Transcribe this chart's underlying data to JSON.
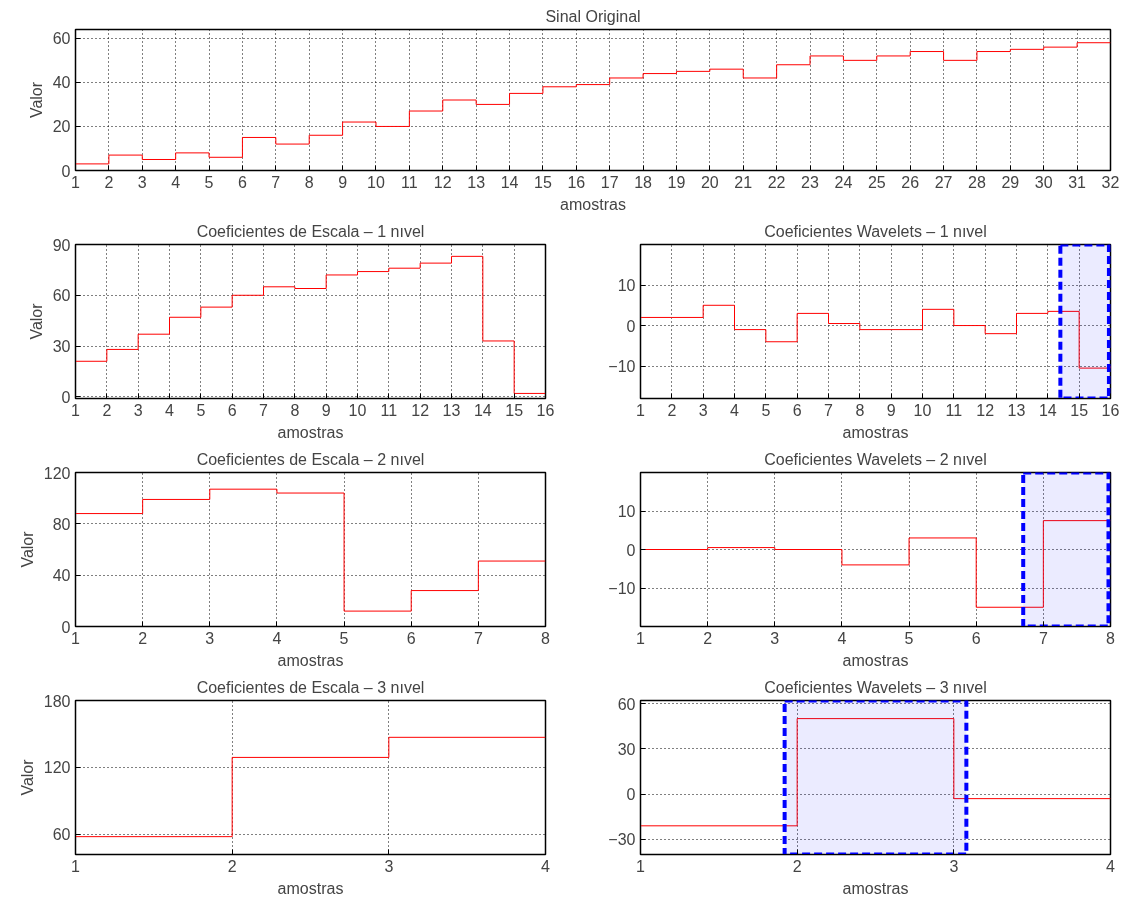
{
  "chart_data": [
    {
      "type": "step",
      "title": "Sinal Original",
      "xlabel": "amostras",
      "ylabel": "Valor",
      "color": "#ff0000",
      "grid": true,
      "x": [
        1,
        2,
        3,
        4,
        5,
        6,
        7,
        8,
        9,
        10,
        11,
        12,
        13,
        14,
        15,
        16,
        17,
        18,
        19,
        20,
        21,
        22,
        23,
        24,
        25,
        26,
        27,
        28,
        29,
        30,
        31,
        32
      ],
      "values": [
        3,
        7,
        5,
        8,
        6,
        15,
        12,
        16,
        22,
        20,
        27,
        32,
        30,
        35,
        38,
        39,
        42,
        44,
        45,
        46,
        42,
        48,
        52,
        50,
        52,
        54,
        50,
        54,
        55,
        56,
        58,
        58
      ],
      "xlim": [
        1,
        32
      ],
      "xticks": [
        1,
        2,
        3,
        4,
        5,
        6,
        7,
        8,
        9,
        10,
        11,
        12,
        13,
        14,
        15,
        16,
        17,
        18,
        19,
        20,
        21,
        22,
        23,
        24,
        25,
        26,
        27,
        28,
        29,
        30,
        31,
        32
      ],
      "ylim": [
        0,
        64
      ],
      "yticks": [
        0,
        20,
        40,
        60
      ]
    },
    {
      "type": "step",
      "title": "Coeficientes de Escala – 1 nıvel",
      "xlabel": "amostras",
      "ylabel": "Valor",
      "color": "#ff0000",
      "grid": true,
      "x": [
        1,
        2,
        3,
        4,
        5,
        6,
        7,
        8,
        9,
        10,
        11,
        12,
        13,
        14,
        15,
        16
      ],
      "values": [
        21,
        28,
        37,
        47,
        53,
        60,
        65,
        64,
        72,
        74,
        76,
        79,
        83,
        33,
        2,
        2
      ],
      "xlim": [
        1,
        16
      ],
      "xticks": [
        1,
        2,
        3,
        4,
        5,
        6,
        7,
        8,
        9,
        10,
        11,
        12,
        13,
        14,
        15,
        16
      ],
      "ylim": [
        -1,
        90
      ],
      "yticks": [
        0,
        30,
        60,
        90
      ]
    },
    {
      "type": "step",
      "title": "Coeficientes Wavelets – 1 nıvel",
      "xlabel": "amostras",
      "color": "#ff0000",
      "grid": true,
      "x": [
        1,
        2,
        3,
        4,
        5,
        6,
        7,
        8,
        9,
        10,
        11,
        12,
        13,
        14,
        15,
        16
      ],
      "values": [
        2,
        2,
        5,
        -1,
        -4,
        3,
        0.5,
        -1,
        -1,
        4,
        0,
        -2,
        3,
        3.5,
        -10.5,
        -10
      ],
      "xlim": [
        1,
        16
      ],
      "xticks": [
        1,
        2,
        3,
        4,
        5,
        6,
        7,
        8,
        9,
        10,
        11,
        12,
        13,
        14,
        15,
        16
      ],
      "ylim": [
        -18,
        20
      ],
      "yticks": [
        -10,
        0,
        10
      ],
      "bands": [
        {
          "axis": "x",
          "from": 14.4,
          "to": 15.95,
          "color": "#0000ff"
        }
      ]
    },
    {
      "type": "step",
      "title": "Coeficientes de Escala – 2 nıvel",
      "xlabel": "amostras",
      "ylabel": "Valor",
      "color": "#ff0000",
      "grid": true,
      "x": [
        1,
        2,
        3,
        4,
        5,
        6,
        7,
        8
      ],
      "values": [
        88,
        99,
        107,
        104,
        12,
        28,
        51,
        51
      ],
      "xlim": [
        1,
        8
      ],
      "xticks": [
        1,
        2,
        3,
        4,
        5,
        6,
        7,
        8
      ],
      "ylim": [
        0,
        120
      ],
      "yticks": [
        0,
        40,
        80,
        120
      ]
    },
    {
      "type": "step",
      "title": "Coeficientes Wavelets – 2 nıvel",
      "xlabel": "amostras",
      "color": "#ff0000",
      "grid": true,
      "x": [
        1,
        2,
        3,
        4,
        5,
        6,
        7,
        8
      ],
      "values": [
        0,
        0.5,
        0,
        -4,
        3,
        -15,
        7.5,
        7.5
      ],
      "xlim": [
        1,
        8
      ],
      "xticks": [
        1,
        2,
        3,
        4,
        5,
        6,
        7,
        8
      ],
      "ylim": [
        -20,
        20
      ],
      "yticks": [
        -10,
        0,
        10
      ],
      "bands": [
        {
          "axis": "x",
          "from": 6.7,
          "to": 7.97,
          "color": "#0000ff"
        }
      ]
    },
    {
      "type": "step",
      "title": "Coeficientes de Escala – 3 nıvel",
      "xlabel": "amostras",
      "ylabel": "Valor",
      "color": "#ff0000",
      "grid": true,
      "x": [
        1,
        2,
        3,
        4
      ],
      "values": [
        58,
        129,
        147,
        147
      ],
      "xlim": [
        1,
        4
      ],
      "xticks": [
        1,
        2,
        3,
        4
      ],
      "ylim": [
        42,
        180
      ],
      "yticks": [
        60,
        120,
        180
      ]
    },
    {
      "type": "step",
      "title": "Coeficientes Wavelets – 3 nıvel",
      "xlabel": "amostras",
      "color": "#ff0000",
      "grid": true,
      "x": [
        1,
        2,
        3,
        4
      ],
      "values": [
        -21,
        50,
        -3,
        -3
      ],
      "xlim": [
        1,
        4
      ],
      "xticks": [
        1,
        2,
        3,
        4
      ],
      "ylim": [
        -40,
        62
      ],
      "yticks": [
        -30,
        0,
        30,
        60
      ],
      "bands": [
        {
          "axis": "x",
          "from": 1.92,
          "to": 3.08,
          "color": "#0000ff"
        }
      ]
    }
  ]
}
